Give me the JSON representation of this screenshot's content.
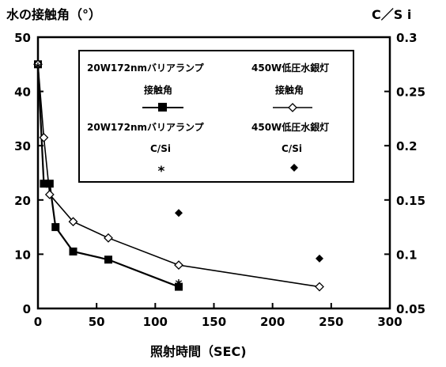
{
  "chart_data": {
    "type": "line",
    "title": "",
    "xlabel": "照射時間（SEC)",
    "ylabel": "水の接触角（°）",
    "ylabel_right": "C／S i",
    "xlim": [
      0,
      300
    ],
    "ylim": [
      0,
      50
    ],
    "ylim_right": [
      0.05,
      0.3
    ],
    "x_ticks": [
      "0",
      "50",
      "100",
      "150",
      "200",
      "250",
      "300"
    ],
    "y_ticks": [
      "0",
      "10",
      "20",
      "30",
      "40",
      "50"
    ],
    "y_right_ticks": [
      "0.05",
      "0.1",
      "0.15",
      "0.2",
      "0.25",
      "0.3"
    ],
    "grid": false,
    "legend": {
      "placement": "top-center",
      "entries": [
        {
          "line1": "20W172nmバリアランプ",
          "line2": "接触角"
        },
        {
          "line1": "450W低圧水銀灯",
          "line2": "接触角"
        },
        {
          "line1": "20W172nmバリアランプ",
          "line2": "C/Si"
        },
        {
          "line1": "450W低圧水銀灯",
          "line2": "C/Si"
        }
      ]
    },
    "series": [
      {
        "name": "20W172nmバリアランプ 接触角",
        "axis": "left",
        "marker": "filled-square",
        "line": true,
        "x": [
          0,
          5,
          10,
          15,
          30,
          60,
          120
        ],
        "y": [
          45,
          23,
          23,
          15,
          10.5,
          9,
          4
        ]
      },
      {
        "name": "450W低圧水銀灯 接触角",
        "axis": "left",
        "marker": "open-diamond",
        "line": true,
        "x": [
          0,
          5,
          10,
          30,
          60,
          120,
          240
        ],
        "y": [
          45,
          31.5,
          21,
          16,
          13,
          8,
          4
        ]
      },
      {
        "name": "20W172nmバリアランプ C/Si",
        "axis": "right",
        "marker": "asterisk",
        "line": false,
        "x": [
          0,
          120
        ],
        "y": [
          0.275,
          0.075
        ]
      },
      {
        "name": "450W低圧水銀灯 C/Si",
        "axis": "right",
        "marker": "filled-diamond",
        "line": false,
        "x": [
          120,
          240
        ],
        "y": [
          0.138,
          0.096
        ]
      }
    ]
  }
}
